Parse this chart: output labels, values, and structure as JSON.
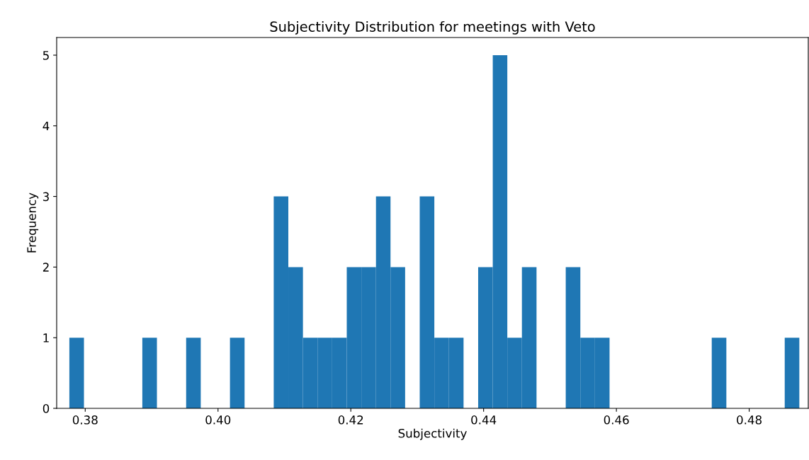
{
  "chart_data": {
    "type": "histogram",
    "title": "Subjectivity Distribution for meetings with Veto",
    "xlabel": "Subjectivity",
    "ylabel": "Frequency",
    "bins": [
      0.37761,
      0.37981,
      0.38201,
      0.38421,
      0.38641,
      0.3886,
      0.3908,
      0.393,
      0.3952,
      0.3974,
      0.3996,
      0.4018,
      0.404,
      0.4062,
      0.40839,
      0.41059,
      0.41279,
      0.41499,
      0.41719,
      0.41939,
      0.42159,
      0.42379,
      0.42598,
      0.42818,
      0.43038,
      0.43258,
      0.43478,
      0.43698,
      0.43918,
      0.44138,
      0.44357,
      0.44577,
      0.44797,
      0.45017,
      0.45237,
      0.45457,
      0.45677,
      0.45897,
      0.46116,
      0.46336,
      0.46556,
      0.46776,
      0.46996,
      0.47216,
      0.47436,
      0.47656,
      0.47876,
      0.48095,
      0.48315,
      0.48535,
      0.48755
    ],
    "values": [
      1,
      0,
      0,
      0,
      0,
      1,
      0,
      0,
      1,
      0,
      0,
      1,
      0,
      0,
      3,
      2,
      1,
      1,
      1,
      2,
      2,
      3,
      2,
      0,
      3,
      1,
      1,
      0,
      2,
      5,
      1,
      2,
      0,
      0,
      2,
      1,
      1,
      0,
      0,
      0,
      0,
      0,
      0,
      0,
      1,
      0,
      0,
      0,
      0,
      1
    ],
    "color": "#1f77b4",
    "xlim": [
      0.3757,
      0.4889
    ],
    "xticks": [
      {
        "value": 0.38,
        "label": "0.38"
      },
      {
        "value": 0.4,
        "label": "0.40"
      },
      {
        "value": 0.42,
        "label": "0.42"
      },
      {
        "value": 0.44,
        "label": "0.44"
      },
      {
        "value": 0.46,
        "label": "0.46"
      },
      {
        "value": 0.48,
        "label": "0.48"
      }
    ],
    "ylim": [
      0,
      5.25
    ],
    "yticks": [
      0,
      1,
      2,
      3,
      4,
      5
    ],
    "grid": false
  }
}
